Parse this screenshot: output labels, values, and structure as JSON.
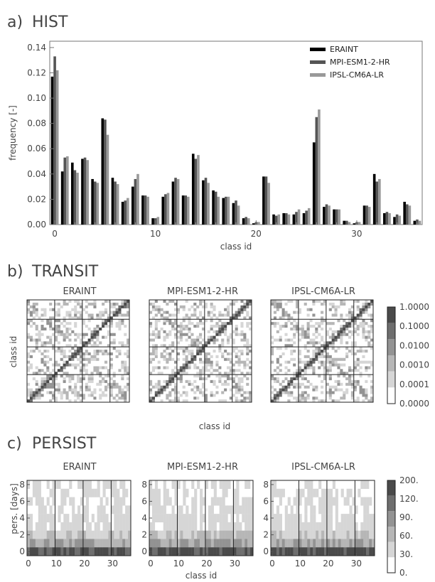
{
  "colors": {
    "ERAINT": "#000000",
    "MPI-ESM1-2-HR": "#555555",
    "IPSL-CM6A-LR": "#999999"
  },
  "panels": {
    "a": {
      "label": "a)",
      "title": "HIST"
    },
    "b": {
      "label": "b)",
      "title": "TRANSIT"
    },
    "c": {
      "label": "c)",
      "title": "PERSIST"
    }
  },
  "chart_data": [
    {
      "type": "bar",
      "title": "HIST",
      "xlabel": "class id",
      "ylabel": "frequency [-]",
      "ylim": [
        0,
        0.145
      ],
      "xlim": [
        -0.5,
        36.5
      ],
      "yticks": [
        "0.00",
        "0.02",
        "0.04",
        "0.06",
        "0.08",
        "0.10",
        "0.12",
        "0.14"
      ],
      "xticks": [
        "0",
        "10",
        "20",
        "30"
      ],
      "legend_position": "top-right",
      "categories": [
        0,
        1,
        2,
        3,
        4,
        5,
        6,
        7,
        8,
        9,
        10,
        11,
        12,
        13,
        14,
        15,
        16,
        17,
        18,
        19,
        20,
        21,
        22,
        23,
        24,
        25,
        26,
        27,
        28,
        29,
        30,
        31,
        32,
        33,
        34,
        35,
        36
      ],
      "series": [
        {
          "name": "ERAINT",
          "values": [
            0.117,
            0.042,
            0.049,
            0.052,
            0.036,
            0.084,
            0.037,
            0.018,
            0.03,
            0.023,
            0.005,
            0.022,
            0.034,
            0.023,
            0.056,
            0.035,
            0.027,
            0.021,
            0.017,
            0.005,
            0.001,
            0.038,
            0.008,
            0.009,
            0.008,
            0.009,
            0.065,
            0.014,
            0.012,
            0.003,
            0.001,
            0.015,
            0.04,
            0.009,
            0.006,
            0.018,
            0.003
          ]
        },
        {
          "name": "MPI-ESM1-2-HR",
          "values": [
            0.133,
            0.053,
            0.043,
            0.053,
            0.034,
            0.083,
            0.034,
            0.019,
            0.036,
            0.023,
            0.005,
            0.024,
            0.037,
            0.023,
            0.052,
            0.037,
            0.026,
            0.022,
            0.019,
            0.006,
            0.002,
            0.038,
            0.007,
            0.009,
            0.01,
            0.011,
            0.085,
            0.016,
            0.012,
            0.003,
            0.002,
            0.015,
            0.034,
            0.01,
            0.008,
            0.016,
            0.004
          ]
        },
        {
          "name": "IPSL-CM6A-LR",
          "values": [
            0.122,
            0.054,
            0.041,
            0.051,
            0.033,
            0.071,
            0.032,
            0.021,
            0.04,
            0.022,
            0.006,
            0.025,
            0.036,
            0.022,
            0.055,
            0.033,
            0.022,
            0.022,
            0.015,
            0.005,
            0.002,
            0.033,
            0.008,
            0.008,
            0.012,
            0.013,
            0.091,
            0.015,
            0.012,
            0.002,
            0.002,
            0.014,
            0.036,
            0.009,
            0.007,
            0.015,
            0.003
          ]
        }
      ]
    },
    {
      "type": "heatmap",
      "title": "TRANSIT",
      "ylabel": "class id",
      "xlabel": "class id",
      "subplots": [
        "ERAINT",
        "MPI-ESM1-2-HR",
        "IPSL-CM6A-LR"
      ],
      "size": [
        37,
        37
      ],
      "colorbar": {
        "ticks": [
          "1.0000",
          "0.1000",
          "0.0100",
          "0.0010",
          "0.0001",
          "0.0000"
        ],
        "colors": [
          "#4a4a4a",
          "#6e6e6e",
          "#939393",
          "#b6b6b6",
          "#d6d6d6",
          "#ffffff"
        ]
      }
    },
    {
      "type": "heatmap",
      "title": "PERSIST",
      "ylabel": "pers. [days]",
      "xlabel": "class id",
      "subplots": [
        "ERAINT",
        "MPI-ESM1-2-HR",
        "IPSL-CM6A-LR"
      ],
      "yticks": [
        "0",
        "2",
        "4",
        "6",
        "8"
      ],
      "xticks": [
        "0",
        "10",
        "20",
        "30"
      ],
      "colorbar": {
        "ticks": [
          "200.",
          "120.",
          "90.",
          "60.",
          "30.",
          "0."
        ],
        "colors": [
          "#4a4a4a",
          "#6e6e6e",
          "#939393",
          "#b6b6b6",
          "#d6d6d6",
          "#ffffff"
        ]
      }
    }
  ]
}
